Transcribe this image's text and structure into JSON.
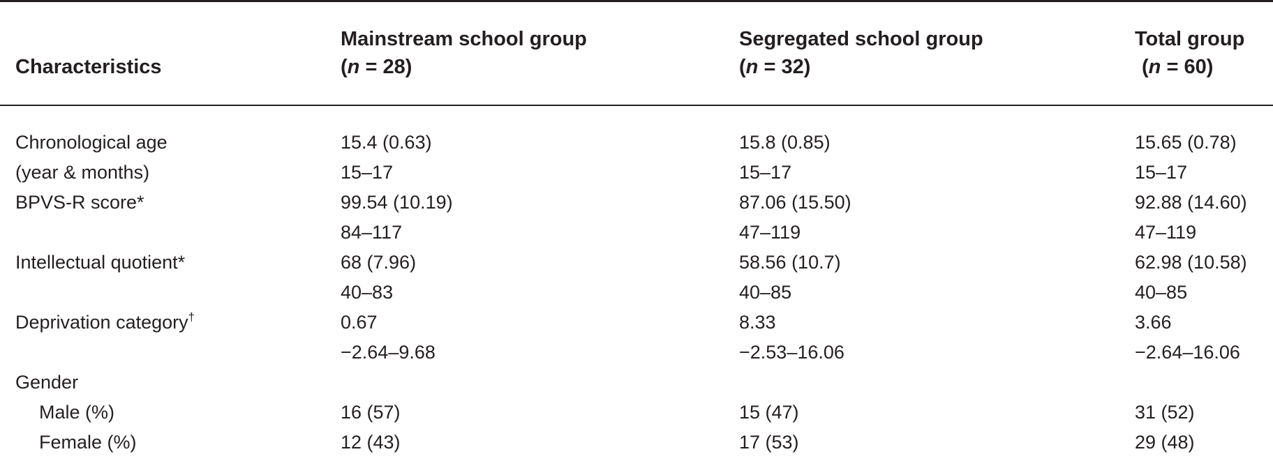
{
  "table": {
    "headers": [
      {
        "line1": "Characteristics",
        "n_label": "",
        "n_value": ""
      },
      {
        "line1": "Mainstream school group",
        "n_label": "n",
        "n_value": " = 28)"
      },
      {
        "line1": "Segregated school group",
        "n_label": "n",
        "n_value": " = 32)"
      },
      {
        "line1": "Total group",
        "n_label": "n",
        "n_value": " = 60)"
      }
    ],
    "rows": [
      {
        "label": "Chronological age",
        "mark": "",
        "values": [
          "15.4 (0.63)",
          "15.8 (0.85)",
          "15.65 (0.78)"
        ]
      },
      {
        "label": "(year & months)",
        "mark": "",
        "values": [
          "15–17",
          "15–17",
          "15–17"
        ]
      },
      {
        "label": "BPVS-R score*",
        "mark": "",
        "values": [
          "99.54 (10.19)",
          "87.06 (15.50)",
          "92.88 (14.60)"
        ]
      },
      {
        "label": "",
        "mark": "",
        "values": [
          "84–117",
          "47–119",
          "47–119"
        ]
      },
      {
        "label": "Intellectual quotient*",
        "mark": "",
        "values": [
          "68 (7.96)",
          "58.56 (10.7)",
          "62.98 (10.58)"
        ]
      },
      {
        "label": "",
        "mark": "",
        "values": [
          "40–83",
          "40–85",
          "40–85"
        ]
      },
      {
        "label": "Deprivation category",
        "mark": "†",
        "values": [
          "0.67",
          "8.33",
          "3.66"
        ]
      },
      {
        "label": "",
        "mark": "",
        "values": [
          "−2.64–9.68",
          "−2.53–16.06",
          "−2.64–16.06"
        ]
      },
      {
        "label": "Gender",
        "mark": "",
        "values": [
          "",
          "",
          ""
        ]
      },
      {
        "label": "Male (%)",
        "mark": "",
        "values": [
          "16 (57)",
          "15 (47)",
          "31 (52)"
        ]
      },
      {
        "label": "Female (%)",
        "mark": "",
        "values": [
          "12 (43)",
          "17 (53)",
          "29 (48)"
        ]
      }
    ]
  }
}
